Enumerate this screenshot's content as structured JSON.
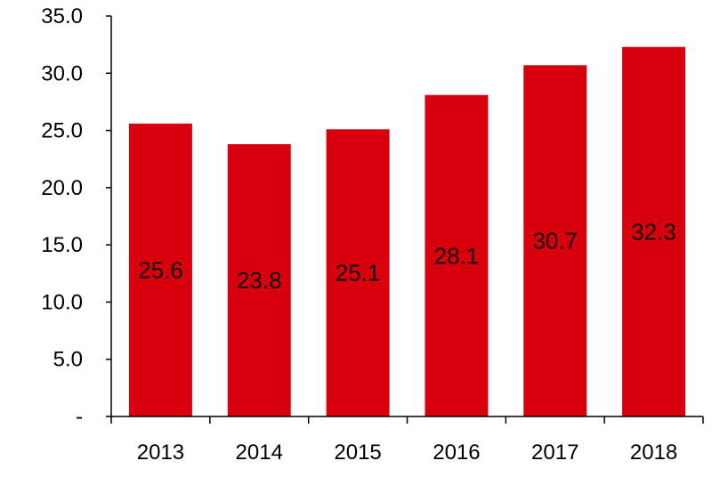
{
  "chart_data": {
    "type": "bar",
    "categories": [
      "2013",
      "2014",
      "2015",
      "2016",
      "2017",
      "2018"
    ],
    "values": [
      25.6,
      23.8,
      25.1,
      28.1,
      30.7,
      32.3
    ],
    "data_labels": [
      "25.6",
      "23.8",
      "25.1",
      "28.1",
      "30.7",
      "32.3"
    ],
    "y_ticks": [
      0,
      5,
      10,
      15,
      20,
      25,
      30,
      35
    ],
    "y_tick_labels": [
      "-",
      "5.0",
      "10.0",
      "15.0",
      "20.0",
      "25.0",
      "30.0",
      "35.0"
    ],
    "ylim": [
      0,
      35
    ],
    "title": "",
    "xlabel": "",
    "ylabel": "",
    "grid": false,
    "legend": "none",
    "bar_color": "#d9000d"
  }
}
